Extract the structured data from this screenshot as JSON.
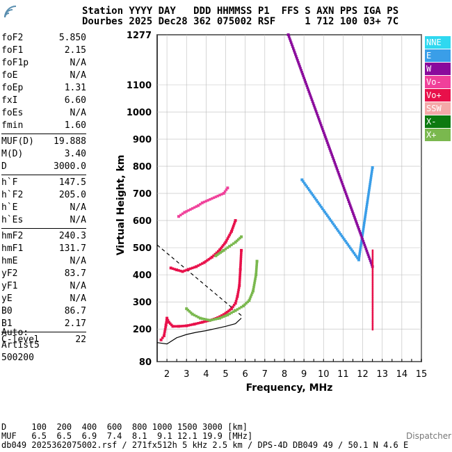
{
  "header": {
    "line1": "Station YYYY DAY   DDD HHMMSS P1  FFS S AXN PPS IGA PS",
    "line2": "Dourbes 2025 Dec28 362 075002 RSF     1 712 100 03+ 7C"
  },
  "params": {
    "group1": [
      {
        "name": "foF2",
        "value": "5.850"
      },
      {
        "name": "foF1",
        "value": "2.15"
      },
      {
        "name": "foF1p",
        "value": "N/A"
      },
      {
        "name": "foE",
        "value": "N/A"
      },
      {
        "name": "foEp",
        "value": "1.31"
      },
      {
        "name": "fxI",
        "value": "6.60"
      },
      {
        "name": "foEs",
        "value": "N/A"
      },
      {
        "name": "fmin",
        "value": "1.60"
      }
    ],
    "group2": [
      {
        "name": "MUF(D)",
        "value": "19.888"
      },
      {
        "name": "M(D)",
        "value": "3.40"
      },
      {
        "name": "D",
        "value": "3000.0"
      }
    ],
    "group3": [
      {
        "name": "h`F",
        "value": "147.5"
      },
      {
        "name": "h`F2",
        "value": "205.0"
      },
      {
        "name": "h`E",
        "value": "N/A"
      },
      {
        "name": "h`Es",
        "value": "N/A"
      }
    ],
    "group4": [
      {
        "name": "hmF2",
        "value": "240.3"
      },
      {
        "name": "hmF1",
        "value": "131.7"
      },
      {
        "name": "hmE",
        "value": "N/A"
      },
      {
        "name": "yF2",
        "value": "83.7"
      },
      {
        "name": "yF1",
        "value": "N/A"
      },
      {
        "name": "yE",
        "value": "N/A"
      },
      {
        "name": "B0",
        "value": "86.7"
      },
      {
        "name": "B1",
        "value": "2.17"
      }
    ],
    "group5": [
      {
        "name": "C-level",
        "value": "22"
      }
    ]
  },
  "auto": {
    "line1": "Auto:",
    "line2": "Artist5",
    "line3": "500200"
  },
  "legend": [
    {
      "label": "NNE",
      "color": "#2fd8f0"
    },
    {
      "label": "E",
      "color": "#3a9ee8"
    },
    {
      "label": "W",
      "color": "#8a0a9c"
    },
    {
      "label": "Vo-",
      "color": "#f0409a"
    },
    {
      "label": "Vo+",
      "color": "#e8104a"
    },
    {
      "label": "SSW",
      "color": "#f4a8a8"
    },
    {
      "label": "X-",
      "color": "#0c7a10"
    },
    {
      "label": "X+",
      "color": "#7ab84e"
    }
  ],
  "bottom": {
    "line1": "D     100  200  400  600  800 1000 1500 3000 [km]",
    "line2": "MUF   6.5  6.5  6.9  7.4  8.1  9.1 12.1 19.9 [MHz]",
    "line3": "db049 2025362075002.rsf / 271fx512h 5 kHz 2.5 km / DPS-4D DB049 49 / 50.1 N 4.6 E"
  },
  "dispatcher": "Dispatcher",
  "chart_data": {
    "type": "scatter",
    "xlabel": "Frequency, MHz",
    "ylabel": "Virtual Height, km",
    "xlim": [
      1.5,
      15
    ],
    "ylim": [
      80,
      1277
    ],
    "x_ticks": [
      2,
      3,
      4,
      5,
      6,
      7,
      8,
      9,
      10,
      11,
      12,
      13,
      14,
      15
    ],
    "y_ticks": [
      80,
      200,
      300,
      400,
      500,
      600,
      700,
      800,
      900,
      1000,
      1100,
      1277
    ],
    "grid": true,
    "traces": [
      {
        "mode": "Vo+",
        "color": "#e8104a",
        "points": [
          [
            1.7,
            160
          ],
          [
            1.85,
            175
          ],
          [
            1.95,
            215
          ],
          [
            2.0,
            240
          ],
          [
            2.1,
            225
          ],
          [
            2.3,
            210
          ],
          [
            2.6,
            210
          ],
          [
            3.0,
            212
          ],
          [
            3.4,
            218
          ],
          [
            3.8,
            225
          ],
          [
            4.2,
            232
          ],
          [
            4.6,
            242
          ],
          [
            5.0,
            258
          ],
          [
            5.3,
            275
          ],
          [
            5.5,
            295
          ],
          [
            5.6,
            320
          ],
          [
            5.7,
            360
          ],
          [
            5.75,
            420
          ],
          [
            5.8,
            490
          ]
        ]
      },
      {
        "mode": "Vo+",
        "color": "#e8104a",
        "points": [
          [
            2.2,
            425
          ],
          [
            2.5,
            418
          ],
          [
            2.8,
            412
          ],
          [
            3.1,
            420
          ],
          [
            3.5,
            430
          ],
          [
            3.9,
            445
          ],
          [
            4.3,
            465
          ],
          [
            4.7,
            492
          ],
          [
            5.0,
            520
          ],
          [
            5.3,
            560
          ],
          [
            5.5,
            600
          ]
        ]
      },
      {
        "mode": "X+",
        "color": "#7ab84e",
        "points": [
          [
            3.0,
            275
          ],
          [
            3.3,
            255
          ],
          [
            3.7,
            240
          ],
          [
            4.2,
            232
          ],
          [
            4.7,
            240
          ],
          [
            5.1,
            252
          ],
          [
            5.5,
            268
          ],
          [
            5.9,
            285
          ],
          [
            6.2,
            305
          ],
          [
            6.4,
            340
          ],
          [
            6.55,
            400
          ],
          [
            6.6,
            450
          ]
        ]
      },
      {
        "mode": "X+",
        "color": "#7ab84e",
        "points": [
          [
            4.5,
            470
          ],
          [
            4.9,
            490
          ],
          [
            5.2,
            505
          ],
          [
            5.5,
            520
          ],
          [
            5.8,
            540
          ]
        ]
      },
      {
        "mode": "Vo-",
        "color": "#f0409a",
        "points": [
          [
            2.6,
            615
          ],
          [
            2.9,
            630
          ],
          [
            3.6,
            655
          ],
          [
            3.8,
            665
          ],
          [
            4.9,
            700
          ],
          [
            5.1,
            720
          ]
        ]
      },
      {
        "mode": "E",
        "color": "#3a9ee8",
        "points": [
          [
            8.9,
            750
          ],
          [
            11.8,
            455
          ],
          [
            12.5,
            795
          ]
        ]
      },
      {
        "mode": "W",
        "color": "#8a0a9c",
        "points": [
          [
            12.5,
            430
          ],
          [
            8.2,
            1277
          ]
        ]
      }
    ],
    "vertical_trace": {
      "color": "#e8104a",
      "x": 12.5,
      "y_from": 200,
      "y_to": 490
    },
    "profile": [
      [
        1.5,
        150
      ],
      [
        2.0,
        145
      ],
      [
        2.5,
        168
      ],
      [
        3.0,
        180
      ],
      [
        3.5,
        188
      ],
      [
        4.0,
        194
      ],
      [
        4.5,
        202
      ],
      [
        5.0,
        210
      ],
      [
        5.5,
        220
      ],
      [
        5.8,
        240
      ]
    ],
    "dashed_line": [
      [
        1.5,
        510
      ],
      [
        5.8,
        250
      ]
    ]
  }
}
